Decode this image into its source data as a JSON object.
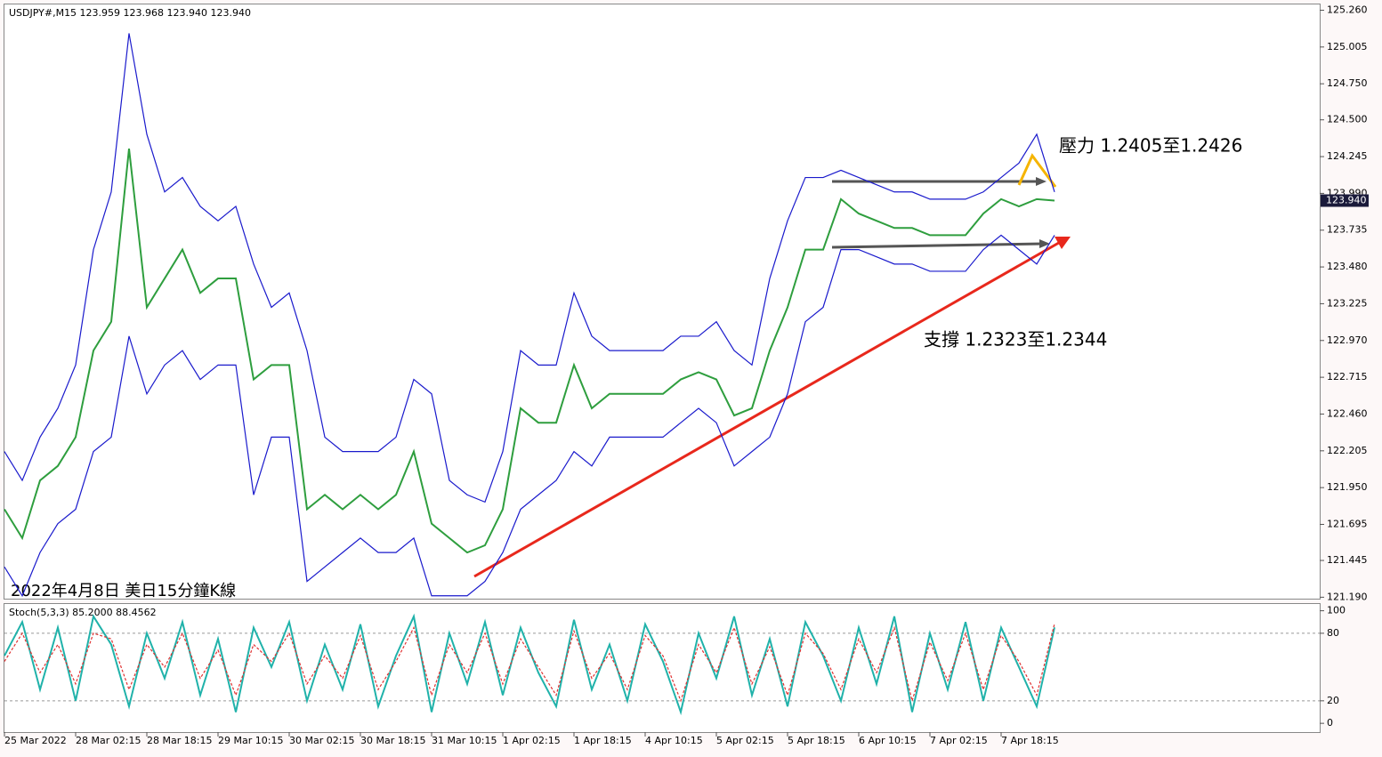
{
  "chart_data": [
    {
      "type": "line",
      "title": "USDJPY#,M15  123.959 123.968 123.940 123.940",
      "annotations": [
        "壓力 1.2405至1.2426",
        "支撐 1.2323至1.2344",
        "2022年4月8日 美日15分鐘K線"
      ],
      "categories": [
        "25 Mar 2022",
        null,
        null,
        null,
        "28 Mar 02:15",
        null,
        null,
        null,
        "28 Mar 18:15",
        null,
        null,
        null,
        "29 Mar 10:15",
        null,
        null,
        null,
        "30 Mar 02:15",
        null,
        null,
        null,
        "30 Mar 18:15",
        null,
        null,
        null,
        "31 Mar 10:15",
        null,
        null,
        null,
        "1 Apr 02:15",
        null,
        null,
        null,
        "1 Apr 18:15",
        null,
        null,
        null,
        "4 Apr 10:15",
        null,
        null,
        null,
        "5 Apr 02:15",
        null,
        null,
        null,
        "5 Apr 18:15",
        null,
        null,
        null,
        "6 Apr 10:15",
        null,
        null,
        null,
        "7 Apr 02:15",
        null,
        null,
        null,
        "7 Apr 18:15",
        null,
        null,
        null
      ],
      "series": [
        {
          "name": "Close",
          "color": "#2e9e3e",
          "values": [
            121.8,
            121.6,
            122.0,
            122.1,
            122.3,
            122.9,
            123.1,
            124.3,
            123.2,
            123.4,
            123.6,
            123.3,
            123.4,
            123.4,
            122.7,
            122.8,
            122.8,
            121.8,
            121.9,
            121.8,
            121.9,
            121.8,
            121.9,
            122.2,
            121.7,
            121.6,
            121.5,
            121.55,
            121.8,
            122.5,
            122.4,
            122.4,
            122.8,
            122.5,
            122.6,
            122.6,
            122.6,
            122.6,
            122.7,
            122.75,
            122.7,
            122.45,
            122.5,
            122.9,
            123.2,
            123.6,
            123.6,
            123.95,
            123.85,
            123.8,
            123.75,
            123.75,
            123.7,
            123.7,
            123.7,
            123.85,
            123.95,
            123.9,
            123.95,
            123.94
          ]
        },
        {
          "name": "Upper",
          "color": "#1a1acc",
          "values": [
            122.2,
            122.0,
            122.3,
            122.5,
            122.8,
            123.6,
            124.0,
            125.1,
            124.4,
            124.0,
            124.1,
            123.9,
            123.8,
            123.9,
            123.5,
            123.2,
            123.3,
            122.9,
            122.3,
            122.2,
            122.2,
            122.2,
            122.3,
            122.7,
            122.6,
            122.0,
            121.9,
            121.85,
            122.2,
            122.9,
            122.8,
            122.8,
            123.3,
            123.0,
            122.9,
            122.9,
            122.9,
            122.9,
            123.0,
            123.0,
            123.1,
            122.9,
            122.8,
            123.4,
            123.8,
            124.1,
            124.1,
            124.15,
            124.1,
            124.05,
            124.0,
            124.0,
            123.95,
            123.95,
            123.95,
            124.0,
            124.1,
            124.2,
            124.4,
            124.0
          ]
        },
        {
          "name": "Lower",
          "color": "#1a1acc",
          "values": [
            121.4,
            121.2,
            121.5,
            121.7,
            121.8,
            122.2,
            122.3,
            123.0,
            122.6,
            122.8,
            122.9,
            122.7,
            122.8,
            122.8,
            121.9,
            122.3,
            122.3,
            121.3,
            121.4,
            121.5,
            121.6,
            121.5,
            121.5,
            121.6,
            121.2,
            121.2,
            121.2,
            121.3,
            121.5,
            121.8,
            121.9,
            122.0,
            122.2,
            122.1,
            122.3,
            122.3,
            122.3,
            122.3,
            122.4,
            122.5,
            122.4,
            122.1,
            122.2,
            122.3,
            122.6,
            123.1,
            123.2,
            123.6,
            123.6,
            123.55,
            123.5,
            123.5,
            123.45,
            123.45,
            123.45,
            123.6,
            123.7,
            123.6,
            123.5,
            123.7
          ]
        }
      ],
      "last_price": {
        "value": 123.94,
        "label": "123.940"
      },
      "ylim": [
        121.18,
        125.3
      ],
      "yticks": [
        {
          "value": 125.26,
          "label": "125.260"
        },
        {
          "value": 125.005,
          "label": "125.005"
        },
        {
          "value": 124.75,
          "label": "124.750"
        },
        {
          "value": 124.5,
          "label": "124.500"
        },
        {
          "value": 124.245,
          "label": "124.245"
        },
        {
          "value": 123.99,
          "label": "123.990"
        },
        {
          "value": 123.735,
          "label": "123.735"
        },
        {
          "value": 123.48,
          "label": "123.480"
        },
        {
          "value": 123.225,
          "label": "123.225"
        },
        {
          "value": 122.97,
          "label": "122.970"
        },
        {
          "value": 122.715,
          "label": "122.715"
        },
        {
          "value": 122.46,
          "label": "122.460"
        },
        {
          "value": 122.205,
          "label": "122.205"
        },
        {
          "value": 121.95,
          "label": "121.950"
        },
        {
          "value": 121.695,
          "label": "121.695"
        },
        {
          "value": 121.445,
          "label": "121.445"
        },
        {
          "value": 121.19,
          "label": "121.190"
        }
      ]
    },
    {
      "type": "line",
      "title": "Stoch(5,3,3) 85.2000 88.4562",
      "series": [
        {
          "name": "Main",
          "color": "#20b2aa",
          "values": [
            60,
            90,
            30,
            85,
            20,
            95,
            70,
            15,
            80,
            40,
            90,
            25,
            75,
            10,
            85,
            50,
            90,
            20,
            70,
            30,
            88,
            15,
            60,
            95,
            10,
            80,
            35,
            90,
            25,
            85,
            45,
            15,
            92,
            30,
            70,
            20,
            88,
            55,
            10,
            80,
            40,
            95,
            25,
            75,
            15,
            90,
            60,
            20,
            85,
            35,
            95,
            10,
            80,
            30,
            90,
            20,
            85,
            50,
            15,
            85.2
          ]
        },
        {
          "name": "Signal",
          "color": "#e03030",
          "values": [
            55,
            80,
            45,
            70,
            35,
            80,
            75,
            30,
            70,
            50,
            80,
            40,
            65,
            25,
            70,
            55,
            80,
            35,
            60,
            40,
            78,
            30,
            55,
            85,
            25,
            70,
            45,
            80,
            35,
            75,
            50,
            25,
            82,
            40,
            62,
            30,
            78,
            60,
            20,
            70,
            45,
            85,
            35,
            68,
            25,
            80,
            62,
            30,
            75,
            45,
            85,
            20,
            72,
            38,
            80,
            30,
            78,
            55,
            25,
            88.4562
          ]
        }
      ],
      "ylim": [
        -7,
        106
      ],
      "yticks": [
        0,
        20,
        80,
        100
      ],
      "levels": [
        20,
        80
      ]
    }
  ]
}
